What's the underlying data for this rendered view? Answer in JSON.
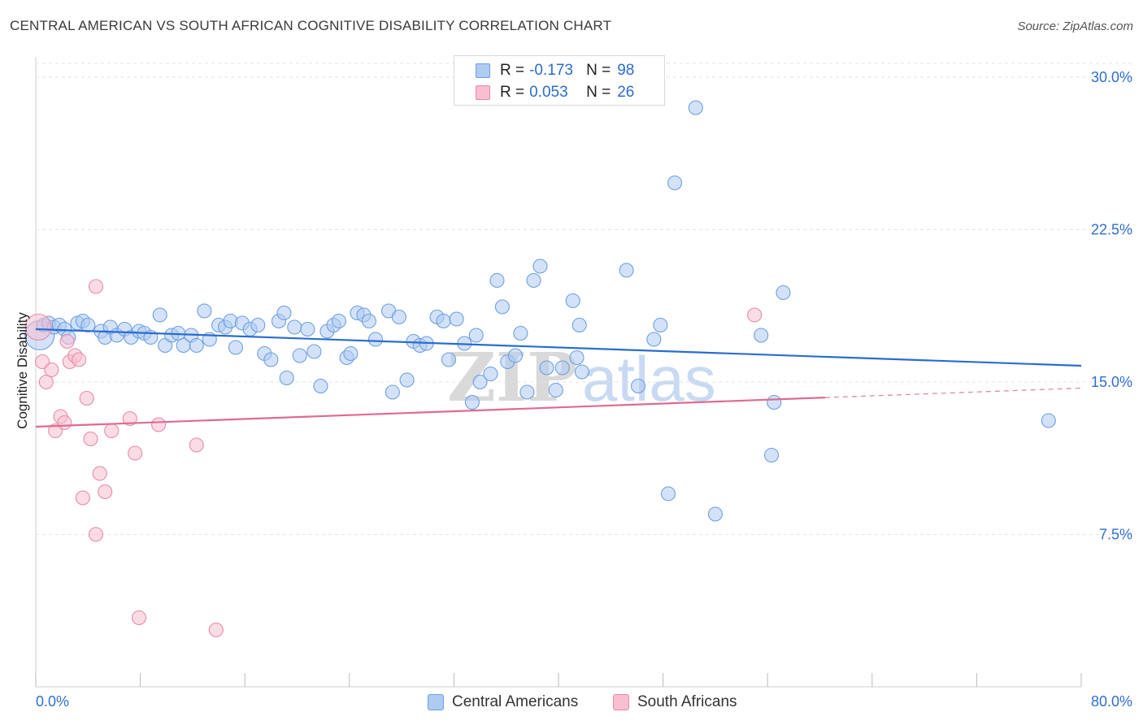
{
  "header": {
    "title": "CENTRAL AMERICAN VS SOUTH AFRICAN COGNITIVE DISABILITY CORRELATION CHART",
    "source": "Source: ZipAtlas.com"
  },
  "legend_top": {
    "rows": [
      {
        "r_label": "R =",
        "r_value": "-0.173",
        "n_label": "N =",
        "n_value": "98"
      },
      {
        "r_label": "R =",
        "r_value": "0.053",
        "n_label": "N =",
        "n_value": "26"
      }
    ]
  },
  "legend_bottom": {
    "items": [
      {
        "label": "Central Americans"
      },
      {
        "label": "South Africans"
      }
    ]
  },
  "watermark": {
    "part1": "ZIP",
    "part2": "atlas"
  },
  "colors": {
    "blue_fill": "#aecbf2",
    "blue_stroke": "#6e9fe0",
    "blue_line": "#2a6dcf",
    "pink_fill": "#f7bfd0",
    "pink_stroke": "#e88aa8",
    "pink_line": "#e06a90",
    "axis_text": "#2f6fd0",
    "grid": "#e3e3e3"
  },
  "chart_data": {
    "type": "scatter",
    "title": "CENTRAL AMERICAN VS SOUTH AFRICAN COGNITIVE DISABILITY CORRELATION CHART",
    "xlabel": "",
    "ylabel": "Cognitive Disability",
    "xlim": [
      0,
      80
    ],
    "ylim": [
      0,
      31
    ],
    "x_tick_labels": [
      "0.0%",
      "80.0%"
    ],
    "y_ticks": [
      7.5,
      15.0,
      22.5,
      30.0
    ],
    "y_tick_labels": [
      "7.5%",
      "15.0%",
      "22.5%",
      "30.0%"
    ],
    "grid": true,
    "legend_position": "top-center",
    "series": [
      {
        "name": "Central Americans",
        "color": "blue",
        "trend": {
          "x0": 0.0,
          "y0": 17.6,
          "x1": 80.0,
          "y1": 15.8,
          "dashed_from": null
        },
        "points": [
          [
            0.3,
            17.3
          ],
          [
            0.6,
            17.8
          ],
          [
            1.0,
            17.9
          ],
          [
            1.4,
            17.7
          ],
          [
            1.8,
            17.8
          ],
          [
            2.2,
            17.6
          ],
          [
            2.5,
            17.2
          ],
          [
            3.2,
            17.9
          ],
          [
            3.6,
            18.0
          ],
          [
            4.0,
            17.8
          ],
          [
            5.0,
            17.5
          ],
          [
            5.3,
            17.2
          ],
          [
            5.7,
            17.7
          ],
          [
            6.2,
            17.3
          ],
          [
            6.8,
            17.6
          ],
          [
            7.3,
            17.2
          ],
          [
            7.9,
            17.5
          ],
          [
            8.3,
            17.4
          ],
          [
            8.8,
            17.2
          ],
          [
            9.5,
            18.3
          ],
          [
            9.9,
            16.8
          ],
          [
            10.4,
            17.3
          ],
          [
            10.9,
            17.4
          ],
          [
            11.3,
            16.8
          ],
          [
            11.9,
            17.3
          ],
          [
            12.3,
            16.8
          ],
          [
            13.3,
            17.1
          ],
          [
            12.9,
            18.5
          ],
          [
            14.0,
            17.8
          ],
          [
            14.5,
            17.7
          ],
          [
            14.9,
            18.0
          ],
          [
            15.3,
            16.7
          ],
          [
            15.8,
            17.9
          ],
          [
            16.4,
            17.6
          ],
          [
            17.0,
            17.8
          ],
          [
            17.5,
            16.4
          ],
          [
            18.0,
            16.1
          ],
          [
            18.6,
            18.0
          ],
          [
            19.0,
            18.4
          ],
          [
            19.2,
            15.2
          ],
          [
            19.8,
            17.7
          ],
          [
            20.2,
            16.3
          ],
          [
            20.8,
            17.6
          ],
          [
            21.3,
            16.5
          ],
          [
            21.8,
            14.8
          ],
          [
            22.3,
            17.5
          ],
          [
            22.8,
            17.8
          ],
          [
            23.2,
            18.0
          ],
          [
            23.8,
            16.2
          ],
          [
            24.1,
            16.4
          ],
          [
            24.6,
            18.4
          ],
          [
            25.1,
            18.3
          ],
          [
            25.5,
            18.0
          ],
          [
            26.0,
            17.1
          ],
          [
            27.0,
            18.5
          ],
          [
            27.3,
            14.5
          ],
          [
            27.8,
            18.2
          ],
          [
            28.4,
            15.1
          ],
          [
            28.9,
            17.0
          ],
          [
            29.4,
            16.8
          ],
          [
            29.9,
            16.9
          ],
          [
            30.7,
            18.2
          ],
          [
            31.2,
            18.0
          ],
          [
            31.6,
            16.1
          ],
          [
            32.2,
            18.1
          ],
          [
            32.8,
            16.9
          ],
          [
            33.4,
            14.0
          ],
          [
            33.7,
            17.3
          ],
          [
            34.0,
            15.0
          ],
          [
            34.8,
            15.4
          ],
          [
            35.3,
            20.0
          ],
          [
            35.7,
            18.7
          ],
          [
            36.1,
            16.0
          ],
          [
            36.7,
            16.3
          ],
          [
            37.1,
            17.4
          ],
          [
            37.6,
            14.5
          ],
          [
            38.1,
            20.0
          ],
          [
            38.6,
            20.7
          ],
          [
            39.1,
            15.7
          ],
          [
            39.8,
            14.6
          ],
          [
            40.3,
            15.7
          ],
          [
            41.1,
            19.0
          ],
          [
            41.4,
            16.2
          ],
          [
            41.6,
            17.8
          ],
          [
            41.8,
            15.5
          ],
          [
            45.2,
            20.5
          ],
          [
            46.1,
            14.8
          ],
          [
            47.3,
            17.1
          ],
          [
            47.8,
            17.8
          ],
          [
            48.4,
            9.5
          ],
          [
            48.9,
            24.8
          ],
          [
            50.5,
            28.5
          ],
          [
            52.0,
            8.5
          ],
          [
            55.5,
            17.3
          ],
          [
            56.3,
            11.4
          ],
          [
            56.5,
            14.0
          ],
          [
            57.2,
            19.4
          ],
          [
            77.5,
            13.1
          ]
        ]
      },
      {
        "name": "South Africans",
        "color": "pink",
        "trend": {
          "x0": 0.0,
          "y0": 12.8,
          "x1": 80.0,
          "y1": 14.7,
          "dashed_from": 60.4
        },
        "points": [
          [
            0.2,
            17.7
          ],
          [
            0.5,
            16.0
          ],
          [
            0.8,
            15.0
          ],
          [
            1.2,
            15.6
          ],
          [
            1.5,
            12.6
          ],
          [
            1.9,
            13.3
          ],
          [
            2.2,
            13.0
          ],
          [
            2.4,
            17.0
          ],
          [
            2.6,
            16.0
          ],
          [
            3.0,
            16.3
          ],
          [
            3.3,
            16.1
          ],
          [
            3.6,
            9.3
          ],
          [
            3.9,
            14.2
          ],
          [
            4.2,
            12.2
          ],
          [
            4.6,
            7.5
          ],
          [
            4.6,
            19.7
          ],
          [
            4.9,
            10.5
          ],
          [
            5.3,
            9.6
          ],
          [
            5.8,
            12.6
          ],
          [
            7.2,
            13.2
          ],
          [
            7.6,
            11.5
          ],
          [
            7.9,
            3.4
          ],
          [
            9.4,
            12.9
          ],
          [
            12.3,
            11.9
          ],
          [
            13.8,
            2.8
          ],
          [
            55.0,
            18.3
          ]
        ]
      }
    ]
  }
}
